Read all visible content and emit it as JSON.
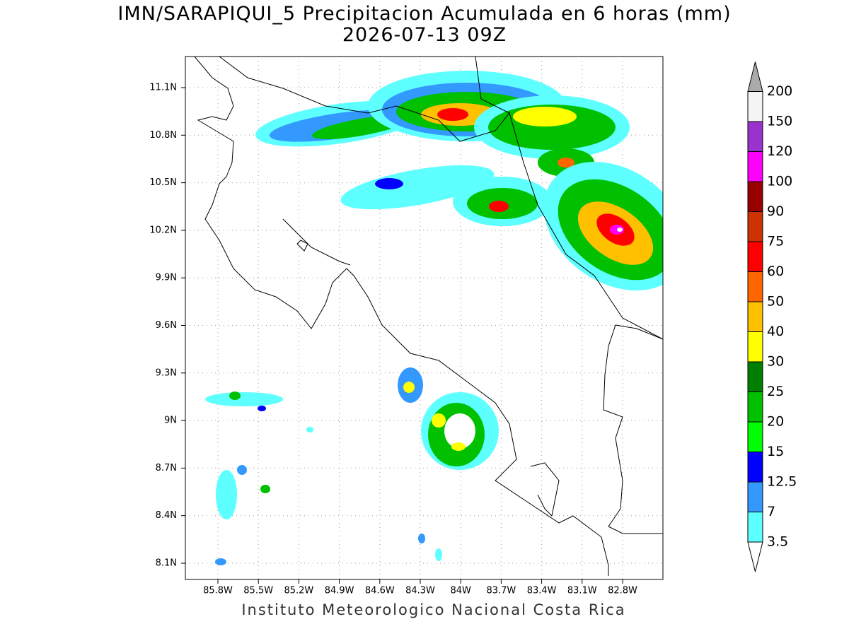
{
  "title": "IMN/SARAPIQUI_5 Precipitacion Acumulada en 6 horas (mm)",
  "subtitle": "2026-07-13 09Z",
  "lat_labels": [
    "11.1N",
    "10.8N",
    "10.5N",
    "10.2N",
    "9.9N",
    "9.6N",
    "9.3N",
    "9N",
    "8.7N",
    "8.4N",
    "8.1N"
  ],
  "lon_labels": [
    "85.8W",
    "85.5W",
    "85.2W",
    "84.9W",
    "84.6W",
    "84.3W",
    "84W",
    "83.7W",
    "83.4W",
    "83.1W",
    "82.8W"
  ],
  "colorbar": {
    "labels": [
      "3.5",
      "7",
      "12.5",
      "15",
      "20",
      "25",
      "30",
      "40",
      "50",
      "60",
      "75",
      "90",
      "100",
      "120",
      "150",
      "200"
    ],
    "colors": [
      "#5effff",
      "#3399ff",
      "#0000ff",
      "#00ff00",
      "#00c000",
      "#008000",
      "#ffff00",
      "#ffc000",
      "#ff6600",
      "#ff0000",
      "#cc3300",
      "#990000",
      "#ff00ff",
      "#9933cc",
      "#f4f4f4"
    ],
    "over_color": "#aaaaaa",
    "under_color": "#ffffff"
  },
  "footer": "Instituto Meteorologico Nacional Costa Rica"
}
